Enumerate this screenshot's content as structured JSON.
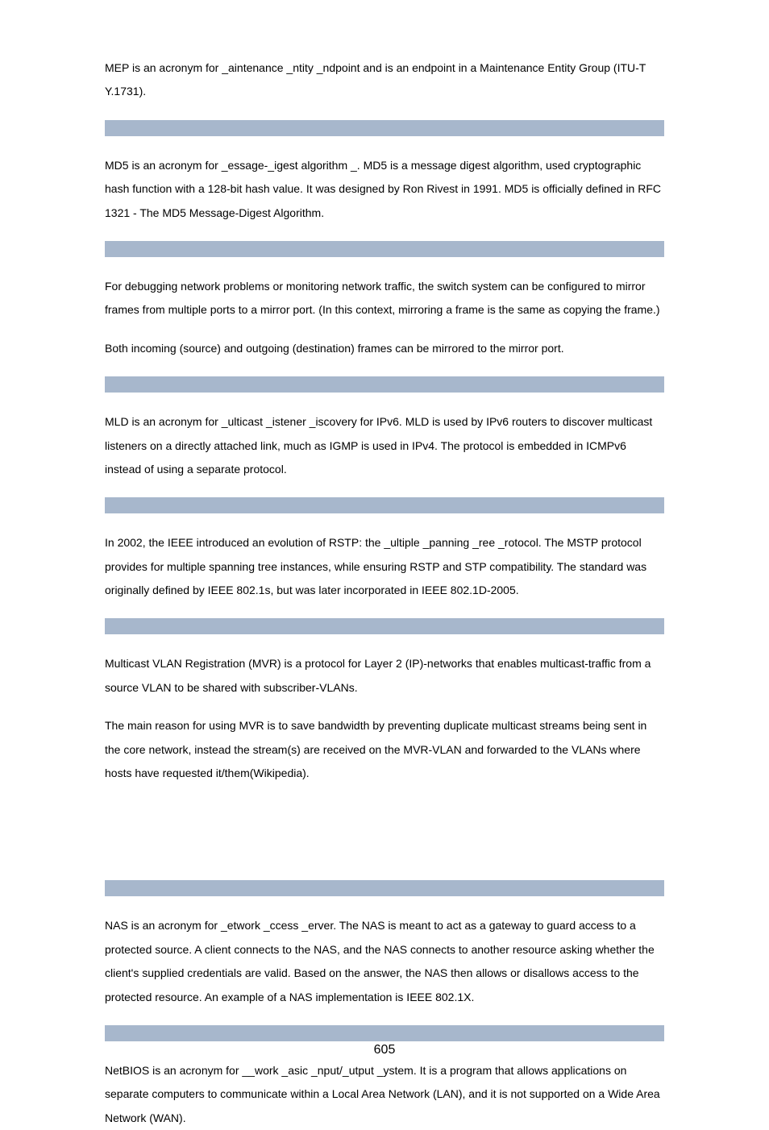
{
  "colors": {
    "header_bg": "#a7b7cc",
    "text": "#000000",
    "page_bg": "#ffffff"
  },
  "typography": {
    "body_fontsize": 14,
    "body_lineheight": 2.1,
    "pagenum_fontsize": 16
  },
  "paragraphs": {
    "mep": "MEP is an acronym for _aintenance _ntity _ndpoint and is an endpoint in a Maintenance Entity Group (ITU-T Y.1731).",
    "md5": "MD5 is an acronym for _essage-_igest algorithm _. MD5 is a message digest algorithm, used cryptographic hash function with a 128-bit hash value. It was designed by Ron Rivest in 1991. MD5 is officially defined in RFC 1321 - The MD5 Message-Digest Algorithm.",
    "mirroring_1": "For debugging network problems or monitoring network traffic, the switch system can be configured to mirror frames from multiple ports to a mirror port. (In this context, mirroring a frame is the same as copying the frame.)",
    "mirroring_2": "Both incoming (source) and outgoing (destination) frames can be mirrored to the mirror port.",
    "mld": "MLD is an acronym for _ulticast _istener _iscovery for IPv6. MLD is used by IPv6 routers to discover multicast listeners on a directly attached link, much as IGMP is used in IPv4. The protocol is embedded in ICMPv6 instead of using a separate protocol.",
    "mstp": "In 2002, the IEEE introduced an evolution of RSTP: the _ultiple _panning _ree _rotocol. The MSTP protocol provides for multiple spanning tree instances, while ensuring RSTP and STP compatibility. The standard was originally defined by IEEE 802.1s, but was later incorporated in IEEE 802.1D-2005.",
    "mvr_1": "Multicast VLAN Registration (MVR) is a protocol for Layer 2 (IP)-networks that enables multicast-traffic from a source VLAN to be shared with subscriber-VLANs.",
    "mvr_2": "The main reason for using MVR is to save bandwidth by preventing duplicate multicast streams being sent in the core network, instead the stream(s) are received on the MVR-VLAN and forwarded to the VLANs where hosts have requested it/them(Wikipedia).",
    "nas": "NAS is an acronym for _etwork _ccess _erver. The NAS is meant to act as a gateway to guard access to a protected source. A client connects to the NAS, and the NAS connects to another resource asking whether the client's supplied credentials are valid. Based on the answer, the NAS then allows or disallows access to the protected resource. An example of a NAS implementation is IEEE 802.1X.",
    "netbios": "NetBIOS is an acronym for __work _asic _nput/_utput _ystem. It is a program that allows applications on separate computers to communicate within a Local Area Network (LAN), and it is not supported on a Wide Area Network (WAN)."
  },
  "page_number": "605"
}
